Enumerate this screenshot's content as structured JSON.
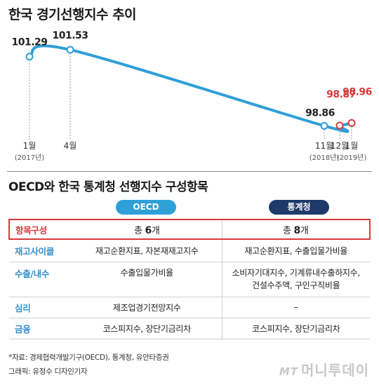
{
  "title": "한국 경기선행지수 추이",
  "chart_data": {
    "type": "line",
    "title": "한국 경기선행지수 추이",
    "points": [
      {
        "tick": "1월",
        "sub": "(2017년)",
        "value": 101.29,
        "label": "101.29",
        "highlight": false,
        "show_tick": true
      },
      {
        "tick": "4월",
        "sub": "",
        "value": 101.53,
        "label": "101.53",
        "highlight": false,
        "show_tick": true
      },
      {
        "tick": "11월",
        "sub": "(2018년)",
        "value": 98.86,
        "label": "98.86",
        "highlight": false,
        "show_tick": true
      },
      {
        "tick": "12월",
        "sub": "",
        "value": 98.87,
        "label": "98.87",
        "highlight": true,
        "show_tick": true
      },
      {
        "tick": "1월",
        "sub": "(2019년)",
        "value": 98.96,
        "label": "98.96",
        "highlight": true,
        "show_tick": true
      }
    ],
    "colors": {
      "line": "#2f9fd8",
      "highlight": "#d93a3a",
      "normal_label": "#222222"
    }
  },
  "subtitle": "OECD와 한국 통계청 선행지수 구성항목",
  "columns": {
    "oecd": "OECD",
    "kor": "통계청"
  },
  "rows": [
    {
      "label": "항목구성",
      "oecd_pre": "총 ",
      "oecd_num": "6",
      "oecd_post": "개",
      "kor_pre": "총 ",
      "kor_num": "8",
      "kor_post": "개"
    },
    {
      "label": "재고사이클",
      "oecd": "재고순환지표, 자본재재고지수",
      "kor": "재고순환지표, 수출입물가비율"
    },
    {
      "label": "수출/내수",
      "oecd": "수출입물가비율",
      "kor_line1": "소비자기대지수, 기계류내수출하지수,",
      "kor_line2": "건설수주액, 구인구직비율"
    },
    {
      "label": "심리",
      "oecd": "제조업경기전망지수",
      "kor": "–"
    },
    {
      "label": "금융",
      "oecd": "코스피지수, 장단기금리차",
      "kor": "코스피지수, 장단기금리차"
    }
  ],
  "source": "*자료: 경제협력개발기구(OECD), 통계청, 유안타증권",
  "credit": "그래픽: 유정수 디자인기자",
  "logo": {
    "mt": "MT",
    "text": "머니투데이"
  }
}
